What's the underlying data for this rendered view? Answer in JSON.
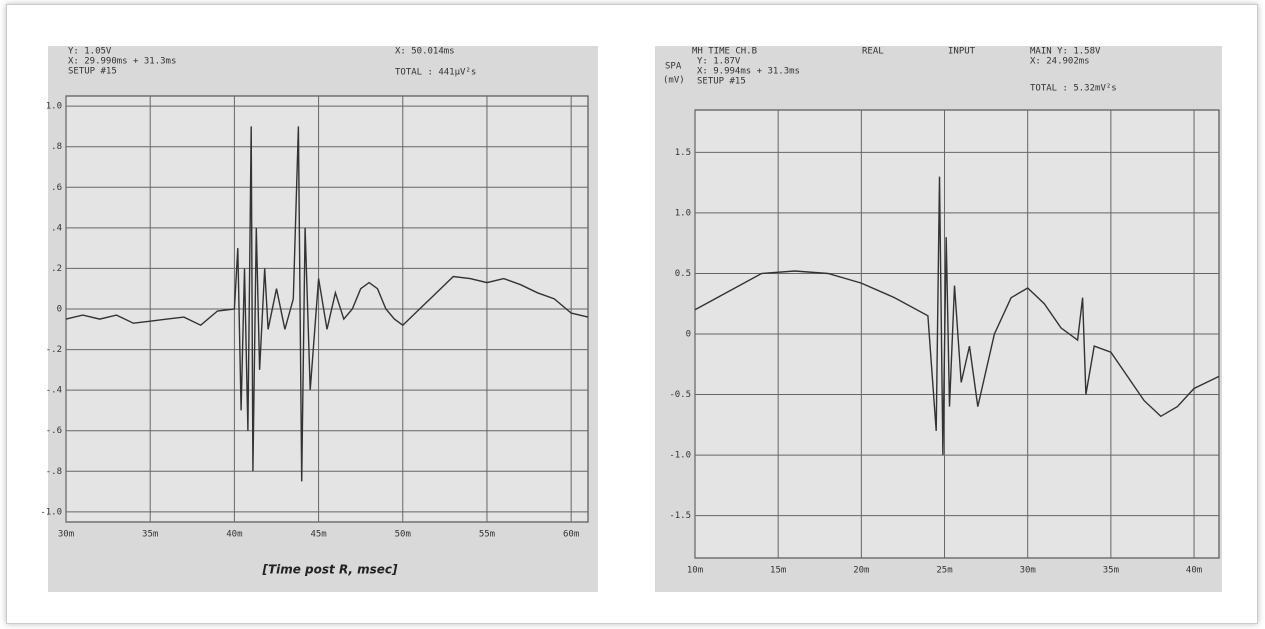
{
  "chart_data": [
    {
      "type": "line",
      "header_texts": [
        "Y: 1.05V",
        "X: 29.990ms + 31.3ms",
        "SETUP #15",
        "X: 50.014ms",
        "TOTAL : 441μV²s"
      ],
      "x_label": "[Time post R, msec]",
      "xlim": [
        30,
        61
      ],
      "ylim": [
        -1.05,
        1.05
      ],
      "xticks": [
        {
          "value": 30,
          "label": "30m"
        },
        {
          "value": 35,
          "label": "35m"
        },
        {
          "value": 40,
          "label": "40m"
        },
        {
          "value": 45,
          "label": "45m"
        },
        {
          "value": 50,
          "label": "50m"
        },
        {
          "value": 55,
          "label": "55m"
        },
        {
          "value": 60,
          "label": "60m"
        }
      ],
      "yticks": [
        {
          "value": 1.0,
          "label": "1.0"
        },
        {
          "value": 0.8,
          "label": ".8"
        },
        {
          "value": 0.6,
          "label": ".6"
        },
        {
          "value": 0.4,
          "label": ".4"
        },
        {
          "value": 0.2,
          "label": ".2"
        },
        0,
        {
          "value": -0.2,
          "label": "-.2"
        },
        {
          "value": -0.4,
          "label": "-.4"
        },
        {
          "value": -0.6,
          "label": "-.6"
        },
        {
          "value": -0.8,
          "label": "-.8"
        },
        {
          "value": -1.0,
          "label": "-1.0"
        }
      ],
      "grid": true,
      "color": "#333333",
      "x": [
        30,
        31,
        32,
        33,
        34,
        35,
        36,
        37,
        38,
        39,
        40,
        40.2,
        40.4,
        40.6,
        40.8,
        41,
        41.1,
        41.3,
        41.5,
        41.8,
        42,
        42.5,
        43,
        43.5,
        43.8,
        44,
        44.2,
        44.5,
        45,
        45.5,
        46,
        46.5,
        47,
        47.5,
        48,
        48.5,
        49,
        49.5,
        50,
        51,
        52,
        53,
        54,
        55,
        56,
        57,
        58,
        59,
        60,
        61
      ],
      "values": [
        -0.05,
        -0.03,
        -0.05,
        -0.03,
        -0.07,
        -0.06,
        -0.05,
        -0.04,
        -0.08,
        -0.01,
        0,
        0.3,
        -0.5,
        0.2,
        -0.6,
        0.9,
        -0.8,
        0.4,
        -0.3,
        0.2,
        -0.1,
        0.1,
        -0.1,
        0.05,
        0.9,
        -0.85,
        0.4,
        -0.4,
        0.15,
        -0.1,
        0.08,
        -0.05,
        0,
        0.1,
        0.13,
        0.1,
        0,
        -0.05,
        -0.08,
        0,
        0.08,
        0.16,
        0.15,
        0.13,
        0.15,
        0.12,
        0.08,
        0.05,
        -0.02,
        -0.04
      ]
    },
    {
      "type": "line",
      "header_texts": [
        "MH TIME CH.B",
        "REAL",
        "INPUT",
        "MAIN Y: 1.58V",
        "SPA",
        "(mV)",
        "Y: 1.87V",
        "X: 9.994ms + 31.3ms",
        "SETUP #15",
        "X: 24.902ms",
        "TOTAL : 5.32mV²s"
      ],
      "xlim": [
        10,
        41.5
      ],
      "ylim": [
        -1.85,
        1.85
      ],
      "xticks": [
        {
          "value": 10,
          "label": "10m"
        },
        {
          "value": 15,
          "label": "15m"
        },
        {
          "value": 20,
          "label": "20m"
        },
        {
          "value": 25,
          "label": "25m"
        },
        {
          "value": 30,
          "label": "30m"
        },
        {
          "value": 35,
          "label": "35m"
        },
        {
          "value": 40,
          "label": "40m"
        }
      ],
      "yticks": [
        1.5,
        {
          "value": 1.0,
          "label": "1.0"
        },
        0.5,
        0,
        -0.5,
        {
          "value": -1.0,
          "label": "-1.0"
        },
        -1.5
      ],
      "grid": true,
      "color": "#333333",
      "x": [
        10,
        12,
        14,
        16,
        18,
        20,
        22,
        24,
        24.5,
        24.7,
        24.9,
        25.1,
        25.3,
        25.6,
        26,
        26.5,
        27,
        27.5,
        28,
        29,
        30,
        31,
        32,
        33,
        33.3,
        33.5,
        34,
        35,
        36,
        37,
        38,
        39,
        40,
        41.5
      ],
      "values": [
        0.2,
        0.35,
        0.5,
        0.52,
        0.5,
        0.42,
        0.3,
        0.15,
        -0.8,
        1.3,
        -1.0,
        0.8,
        -0.6,
        0.4,
        -0.4,
        -0.1,
        -0.6,
        -0.3,
        0,
        0.3,
        0.38,
        0.25,
        0.05,
        -0.05,
        0.3,
        -0.5,
        -0.1,
        -0.15,
        -0.35,
        -0.55,
        -0.68,
        -0.6,
        -0.45,
        -0.35
      ]
    }
  ]
}
